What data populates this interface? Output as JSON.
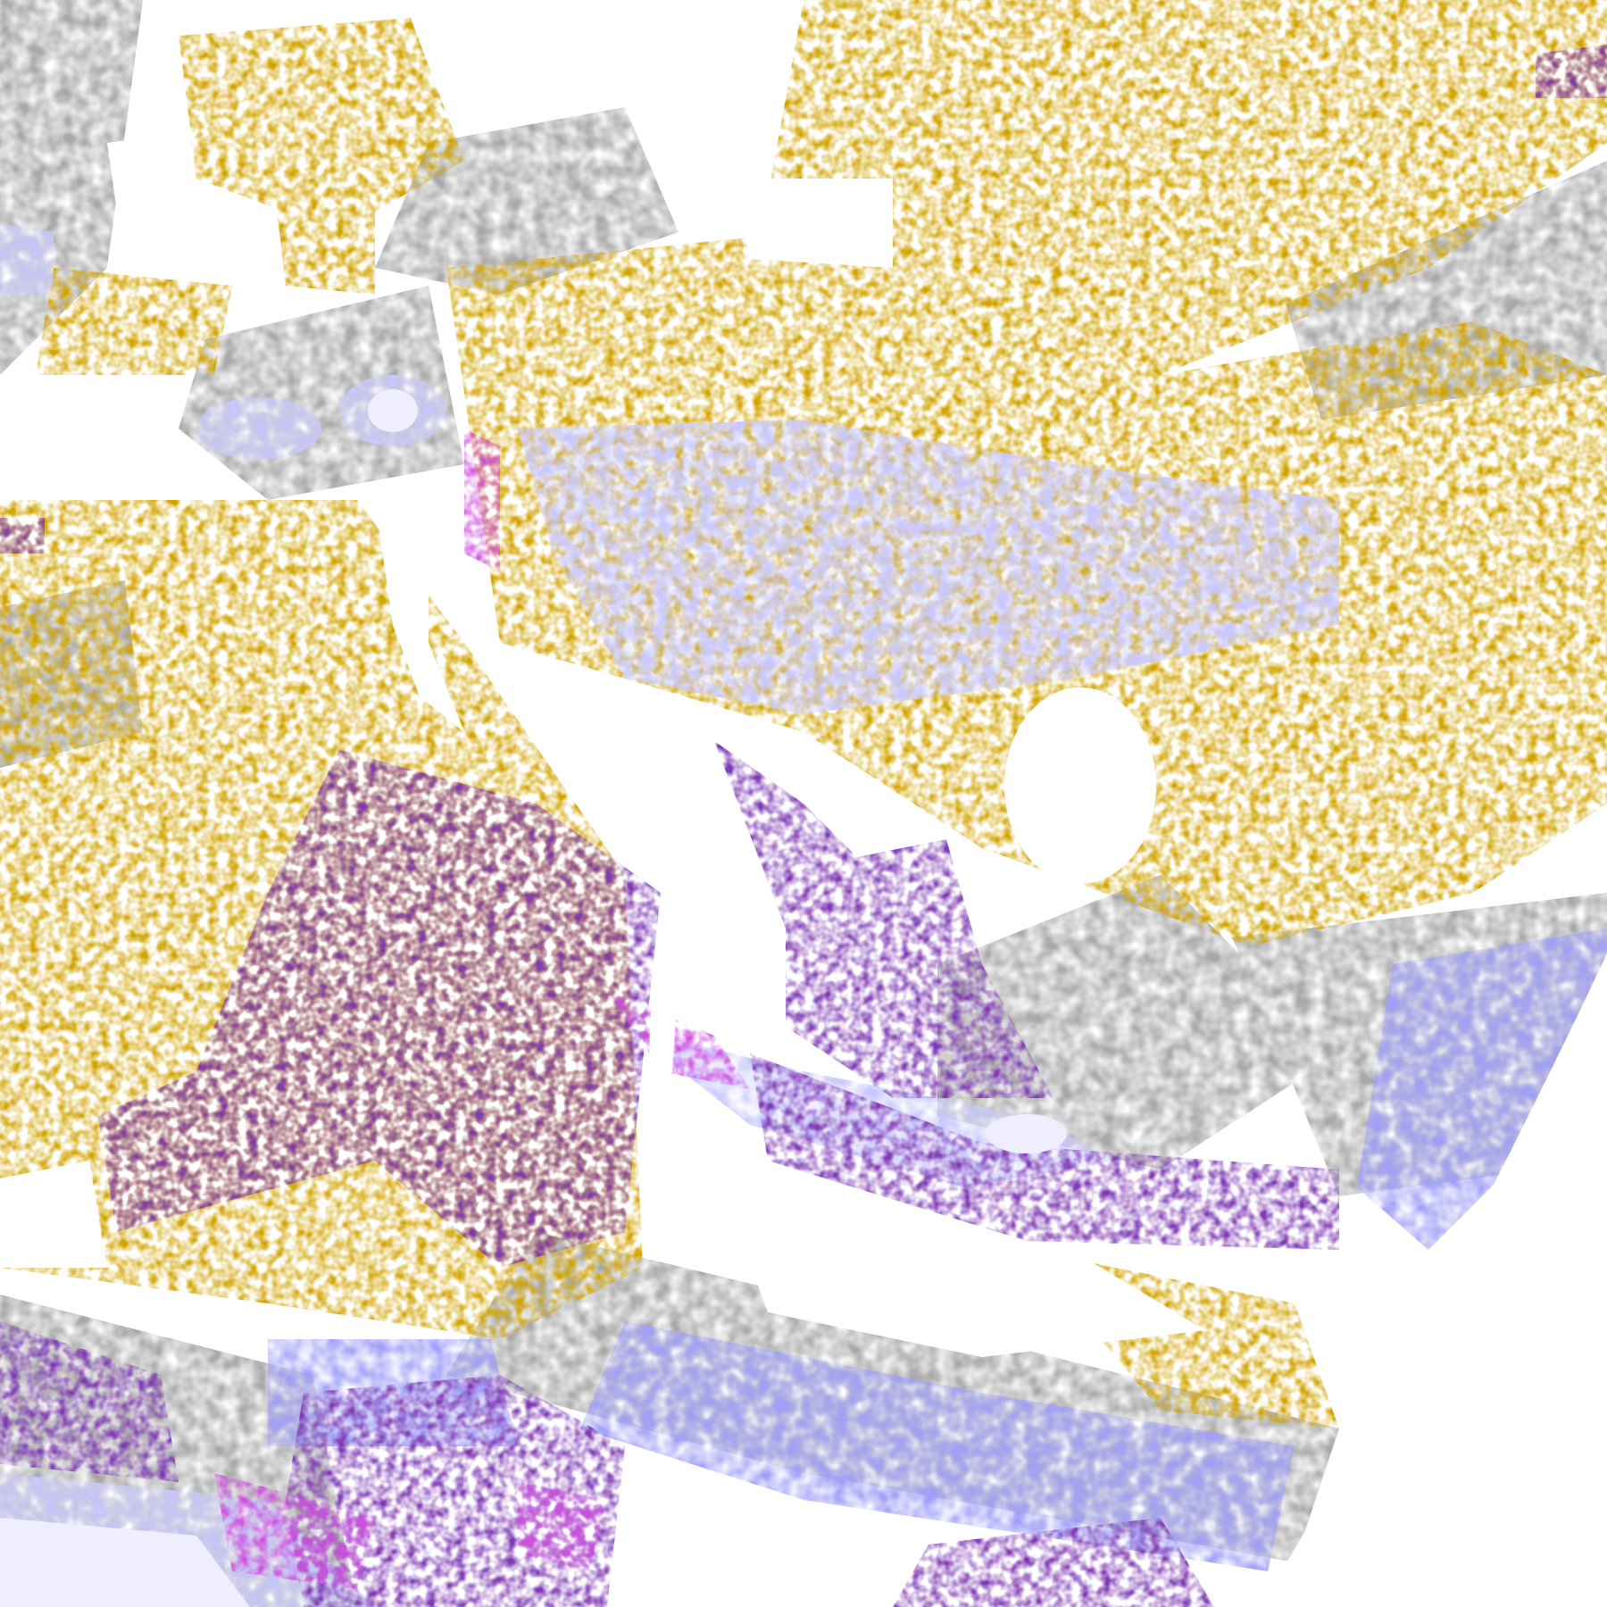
{
  "image": {
    "kind": "false-color satellite cloud classification",
    "palette": {
      "background": "#ffffff",
      "gold": "#d2a400",
      "dark_gold": "#b88c00",
      "purple": "#7e3ab4",
      "magenta": "#d050e0",
      "periwinkle": "#a0a0f8",
      "lavender": "#c8c8ff",
      "pale_lavender": "#eeeeff",
      "gray": "#a8a8a8",
      "dark_gray": "#8a8a8a"
    }
  }
}
